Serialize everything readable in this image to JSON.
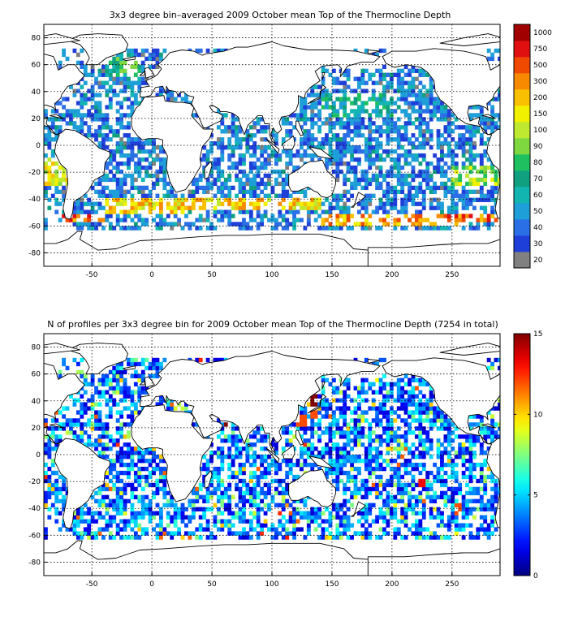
{
  "chart_data": [
    {
      "type": "heatmap",
      "title": "3x3 degree bin–averaged 2009 October mean Top of the Thermocline Depth",
      "xlim": [
        -90,
        290
      ],
      "ylim": [
        -90,
        90
      ],
      "xticks": [
        -50,
        0,
        50,
        100,
        150,
        200,
        250
      ],
      "yticks": [
        80,
        60,
        40,
        20,
        0,
        -20,
        -40,
        -60,
        -80
      ],
      "xtick_labels": [
        "-50",
        "0",
        "50",
        "100",
        "150",
        "200",
        "250"
      ],
      "ytick_labels": [
        "80",
        "60",
        "40",
        "20",
        "0",
        "-20",
        "-40",
        "-60",
        "-80"
      ],
      "grid": true,
      "bin_size_deg": 3,
      "colorbar": {
        "type": "categorical",
        "labels": [
          "20",
          "30",
          "40",
          "50",
          "60",
          "70",
          "80",
          "90",
          "100",
          "150",
          "200",
          "300",
          "500",
          "750",
          "1000"
        ],
        "colors": [
          "#808080",
          "#1f3fd9",
          "#2a6fe6",
          "#1e9fd8",
          "#12b5b0",
          "#10a080",
          "#1fc060",
          "#7fd840",
          "#bfe830",
          "#f0f000",
          "#f8c000",
          "#f88a00",
          "#f04a00",
          "#e01010",
          "#a00000"
        ]
      },
      "field_description": "bin-averaged depth over ocean bins, 3x3 degrees",
      "regions": [
        {
          "lon": [
            -75,
            -40
          ],
          "lat": [
            -57,
            -50
          ],
          "level": 12
        },
        {
          "lon": [
            -40,
            30
          ],
          "lat": [
            -50,
            -40
          ],
          "level": 10
        },
        {
          "lon": [
            30,
            140
          ],
          "lat": [
            -48,
            -38
          ],
          "level": 10
        },
        {
          "lon": [
            140,
            260
          ],
          "lat": [
            -60,
            -52
          ],
          "level": 11
        },
        {
          "lon": [
            240,
            290
          ],
          "lat": [
            -58,
            -52
          ],
          "level": 12
        },
        {
          "lon": [
            -90,
            -70
          ],
          "lat": [
            -30,
            -10
          ],
          "level": 9
        },
        {
          "lon": [
            250,
            290
          ],
          "lat": [
            -30,
            -15
          ],
          "level": 8
        },
        {
          "lon": [
            -40,
            -10
          ],
          "lat": [
            50,
            65
          ],
          "level": 6
        },
        {
          "lon": [
            140,
            200
          ],
          "lat": [
            20,
            40
          ],
          "level": 5
        }
      ]
    },
    {
      "type": "heatmap",
      "title": "N of profiles per 3x3 degree bin for 2009 October mean Top of the Thermocline Depth  (7254 in total)",
      "total_profiles": 7254,
      "xlim": [
        -90,
        290
      ],
      "ylim": [
        -90,
        90
      ],
      "xticks": [
        -50,
        0,
        50,
        100,
        150,
        200,
        250
      ],
      "yticks": [
        80,
        60,
        40,
        20,
        0,
        -20,
        -40,
        -60,
        -80
      ],
      "xtick_labels": [
        "-50",
        "0",
        "50",
        "100",
        "150",
        "200",
        "250"
      ],
      "ytick_labels": [
        "80",
        "60",
        "40",
        "20",
        "0",
        "-20",
        "-40",
        "-60",
        "-80"
      ],
      "grid": true,
      "bin_size_deg": 3,
      "colorbar": {
        "type": "continuous",
        "range": [
          0,
          15
        ],
        "ticks": [
          0,
          5,
          10,
          15
        ],
        "tick_labels": [
          "0",
          "5",
          "10",
          "15"
        ],
        "colormap": "jet"
      },
      "hotspots": [
        {
          "lon": 63,
          "lat": 22,
          "value": 15
        },
        {
          "lon": 135,
          "lat": 40,
          "value": 15
        },
        {
          "lon": 125,
          "lat": 25,
          "value": 12
        },
        {
          "lon": 135,
          "lat": 30,
          "value": 12
        },
        {
          "lon": 225,
          "lat": -20,
          "value": 13
        },
        {
          "lon": 255,
          "lat": -40,
          "value": 12
        }
      ]
    }
  ]
}
